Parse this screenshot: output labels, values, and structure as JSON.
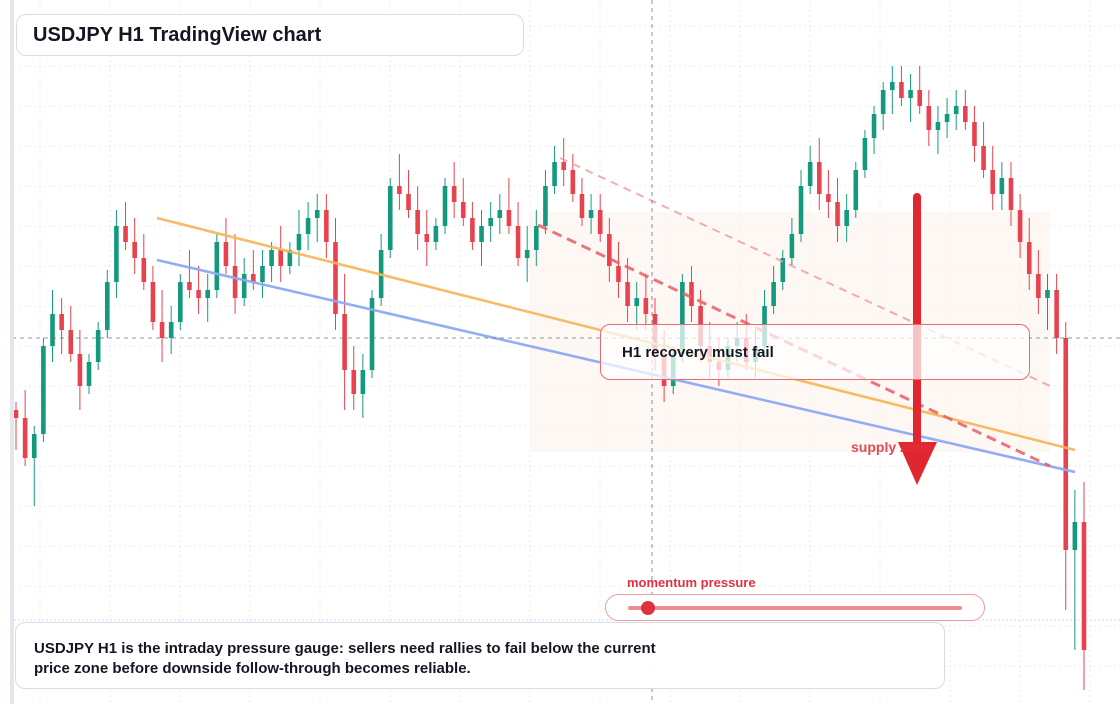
{
  "chart": {
    "title": "USDJPY H1 TradingView chart",
    "callout": "H1 recovery must fail",
    "supply_label": "supply zone",
    "gauge": {
      "label": "momentum pressure",
      "level": 0.06
    },
    "caption": "USDJPY H1 is the intraday pressure gauge: sellers need rallies to fail below the current price zone before downside follow-through becomes reliable.",
    "colors": {
      "up": "#14997f",
      "down": "#e8424f",
      "orange_line": "#f7b555",
      "blue_line": "#8ea9f2",
      "arrow": "#e0262f",
      "dashed": "#e85f66"
    }
  },
  "chart_data": {
    "type": "candlestick",
    "timeframe": "H1",
    "symbol": "USDJPY",
    "candles": [
      [
        0.9,
        0.92,
        0.8,
        0.88
      ],
      [
        0.88,
        0.95,
        0.76,
        0.78
      ],
      [
        0.78,
        0.86,
        0.66,
        0.84
      ],
      [
        0.84,
        1.08,
        0.82,
        1.06
      ],
      [
        1.06,
        1.2,
        1.02,
        1.14
      ],
      [
        1.14,
        1.18,
        1.04,
        1.1
      ],
      [
        1.1,
        1.16,
        1.02,
        1.04
      ],
      [
        1.04,
        1.1,
        0.9,
        0.96
      ],
      [
        0.96,
        1.04,
        0.94,
        1.02
      ],
      [
        1.02,
        1.12,
        1.0,
        1.1
      ],
      [
        1.1,
        1.25,
        1.08,
        1.22
      ],
      [
        1.22,
        1.4,
        1.18,
        1.36
      ],
      [
        1.36,
        1.42,
        1.3,
        1.32
      ],
      [
        1.32,
        1.38,
        1.24,
        1.28
      ],
      [
        1.28,
        1.34,
        1.2,
        1.22
      ],
      [
        1.22,
        1.26,
        1.1,
        1.12
      ],
      [
        1.12,
        1.2,
        1.02,
        1.08
      ],
      [
        1.08,
        1.16,
        1.04,
        1.12
      ],
      [
        1.12,
        1.24,
        1.1,
        1.22
      ],
      [
        1.22,
        1.3,
        1.18,
        1.2
      ],
      [
        1.2,
        1.26,
        1.14,
        1.18
      ],
      [
        1.18,
        1.24,
        1.12,
        1.2
      ],
      [
        1.2,
        1.34,
        1.18,
        1.32
      ],
      [
        1.32,
        1.38,
        1.24,
        1.26
      ],
      [
        1.26,
        1.34,
        1.14,
        1.18
      ],
      [
        1.18,
        1.28,
        1.16,
        1.24
      ],
      [
        1.24,
        1.3,
        1.2,
        1.22
      ],
      [
        1.22,
        1.3,
        1.18,
        1.26
      ],
      [
        1.26,
        1.32,
        1.22,
        1.3
      ],
      [
        1.3,
        1.36,
        1.22,
        1.26
      ],
      [
        1.26,
        1.32,
        1.24,
        1.3
      ],
      [
        1.3,
        1.4,
        1.26,
        1.34
      ],
      [
        1.34,
        1.42,
        1.3,
        1.38
      ],
      [
        1.38,
        1.44,
        1.32,
        1.4
      ],
      [
        1.4,
        1.44,
        1.28,
        1.32
      ],
      [
        1.32,
        1.38,
        1.1,
        1.14
      ],
      [
        1.14,
        1.24,
        0.9,
        1.0
      ],
      [
        1.0,
        1.06,
        0.9,
        0.94
      ],
      [
        0.94,
        1.04,
        0.88,
        1.0
      ],
      [
        1.0,
        1.2,
        0.98,
        1.18
      ],
      [
        1.18,
        1.34,
        1.16,
        1.3
      ],
      [
        1.3,
        1.48,
        1.28,
        1.46
      ],
      [
        1.46,
        1.54,
        1.4,
        1.44
      ],
      [
        1.44,
        1.5,
        1.38,
        1.4
      ],
      [
        1.4,
        1.46,
        1.3,
        1.34
      ],
      [
        1.34,
        1.4,
        1.26,
        1.32
      ],
      [
        1.32,
        1.38,
        1.3,
        1.36
      ],
      [
        1.36,
        1.48,
        1.34,
        1.46
      ],
      [
        1.46,
        1.52,
        1.38,
        1.42
      ],
      [
        1.42,
        1.48,
        1.36,
        1.38
      ],
      [
        1.38,
        1.42,
        1.3,
        1.32
      ],
      [
        1.32,
        1.4,
        1.26,
        1.36
      ],
      [
        1.36,
        1.42,
        1.32,
        1.38
      ],
      [
        1.38,
        1.44,
        1.34,
        1.4
      ],
      [
        1.4,
        1.48,
        1.34,
        1.36
      ],
      [
        1.36,
        1.42,
        1.26,
        1.28
      ],
      [
        1.28,
        1.36,
        1.22,
        1.3
      ],
      [
        1.3,
        1.4,
        1.26,
        1.36
      ],
      [
        1.36,
        1.5,
        1.34,
        1.46
      ],
      [
        1.46,
        1.56,
        1.44,
        1.52
      ],
      [
        1.52,
        1.58,
        1.46,
        1.5
      ],
      [
        1.5,
        1.54,
        1.42,
        1.44
      ],
      [
        1.44,
        1.48,
        1.36,
        1.38
      ],
      [
        1.38,
        1.44,
        1.34,
        1.4
      ],
      [
        1.4,
        1.44,
        1.32,
        1.34
      ],
      [
        1.34,
        1.38,
        1.22,
        1.26
      ],
      [
        1.26,
        1.32,
        1.18,
        1.22
      ],
      [
        1.22,
        1.28,
        1.12,
        1.16
      ],
      [
        1.16,
        1.22,
        1.1,
        1.18
      ],
      [
        1.18,
        1.24,
        1.1,
        1.14
      ],
      [
        1.14,
        1.18,
        1.0,
        1.04
      ],
      [
        1.04,
        1.1,
        0.92,
        0.96
      ],
      [
        0.96,
        1.06,
        0.94,
        1.04
      ],
      [
        1.04,
        1.24,
        1.02,
        1.22
      ],
      [
        1.22,
        1.26,
        1.12,
        1.16
      ],
      [
        1.16,
        1.2,
        1.02,
        1.06
      ],
      [
        1.06,
        1.12,
        0.98,
        1.02
      ],
      [
        1.02,
        1.08,
        0.96,
        1.0
      ],
      [
        1.0,
        1.08,
        0.98,
        1.06
      ],
      [
        1.06,
        1.12,
        1.02,
        1.08
      ],
      [
        1.08,
        1.14,
        1.0,
        1.02
      ],
      [
        1.02,
        1.1,
        0.98,
        1.06
      ],
      [
        1.06,
        1.2,
        1.04,
        1.16
      ],
      [
        1.16,
        1.26,
        1.14,
        1.22
      ],
      [
        1.22,
        1.3,
        1.2,
        1.28
      ],
      [
        1.28,
        1.38,
        1.26,
        1.34
      ],
      [
        1.34,
        1.5,
        1.32,
        1.46
      ],
      [
        1.46,
        1.56,
        1.44,
        1.52
      ],
      [
        1.52,
        1.58,
        1.4,
        1.44
      ],
      [
        1.44,
        1.5,
        1.38,
        1.42
      ],
      [
        1.42,
        1.48,
        1.32,
        1.36
      ],
      [
        1.36,
        1.44,
        1.32,
        1.4
      ],
      [
        1.4,
        1.52,
        1.38,
        1.5
      ],
      [
        1.5,
        1.6,
        1.48,
        1.58
      ],
      [
        1.58,
        1.66,
        1.54,
        1.64
      ],
      [
        1.64,
        1.72,
        1.6,
        1.7
      ],
      [
        1.7,
        1.76,
        1.64,
        1.72
      ],
      [
        1.72,
        1.76,
        1.66,
        1.68
      ],
      [
        1.68,
        1.74,
        1.62,
        1.7
      ],
      [
        1.7,
        1.76,
        1.64,
        1.66
      ],
      [
        1.66,
        1.7,
        1.56,
        1.6
      ],
      [
        1.6,
        1.66,
        1.54,
        1.62
      ],
      [
        1.62,
        1.68,
        1.58,
        1.64
      ],
      [
        1.64,
        1.7,
        1.6,
        1.66
      ],
      [
        1.66,
        1.7,
        1.6,
        1.62
      ],
      [
        1.62,
        1.66,
        1.52,
        1.56
      ],
      [
        1.56,
        1.62,
        1.48,
        1.5
      ],
      [
        1.5,
        1.56,
        1.4,
        1.44
      ],
      [
        1.44,
        1.52,
        1.4,
        1.48
      ],
      [
        1.48,
        1.52,
        1.36,
        1.4
      ],
      [
        1.4,
        1.44,
        1.28,
        1.32
      ],
      [
        1.32,
        1.38,
        1.2,
        1.24
      ],
      [
        1.24,
        1.3,
        1.14,
        1.18
      ],
      [
        1.18,
        1.24,
        1.1,
        1.2
      ],
      [
        1.2,
        1.24,
        1.04,
        1.08
      ],
      [
        1.08,
        1.12,
        0.4,
        0.55
      ],
      [
        0.55,
        0.7,
        0.3,
        0.62
      ],
      [
        0.62,
        0.72,
        0.2,
        0.3
      ]
    ]
  }
}
